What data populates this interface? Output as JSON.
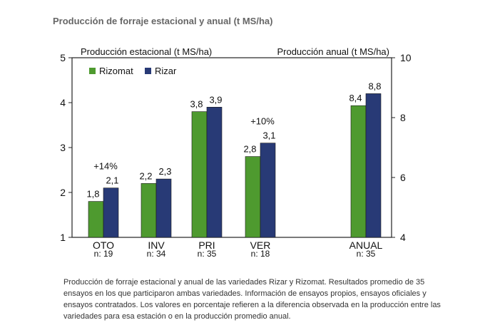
{
  "title": "Producción de forraje estacional y anual (t MS/ha)",
  "caption": "Producción de forraje estacional y anual de las variedades Rizar y Rizomat. Resultados promedio de 35 ensayos en los que participaron ambas variedades. Información de ensayos propios, ensayos oficiales y ensayos contratados. Los valores en porcentaje refieren a la diferencia observada en la producción entre las variedades para esa estación o en la producción promedio anual.",
  "colors": {
    "rizomat": "#4e9a2f",
    "rizar": "#283a76"
  },
  "chart_data": {
    "type": "bar",
    "ylabel": "Producción estacional (t MS/ha)",
    "y2label": "Producción anual (t MS/ha)",
    "ylim": [
      1,
      5
    ],
    "yticks": [
      "1",
      "2",
      "3",
      "4",
      "5"
    ],
    "y2lim": [
      4,
      10
    ],
    "y2ticks": [
      "4",
      "6",
      "8",
      "10"
    ],
    "legend_position": "top-left",
    "grid": false,
    "categories": [
      "OTO",
      "INV",
      "PRI",
      "VER",
      "ANUAL"
    ],
    "sample_sizes": [
      "n: 19",
      "n: 34",
      "n: 35",
      "n: 18",
      "n: 35"
    ],
    "axis": [
      "left",
      "left",
      "left",
      "left",
      "right"
    ],
    "series": [
      {
        "name": "Rizomat",
        "values": [
          1.8,
          2.2,
          3.8,
          2.8,
          8.4
        ],
        "labels": [
          "1,8",
          "2,2",
          "3,8",
          "2,8",
          "8,4"
        ]
      },
      {
        "name": "Rizar",
        "values": [
          2.1,
          2.3,
          3.9,
          3.1,
          8.8
        ],
        "labels": [
          "2,1",
          "2,3",
          "3,9",
          "3,1",
          "8,8"
        ]
      }
    ],
    "annotations": [
      {
        "category": "OTO",
        "text": "+14%"
      },
      {
        "category": "VER",
        "text": "+10%"
      }
    ]
  }
}
